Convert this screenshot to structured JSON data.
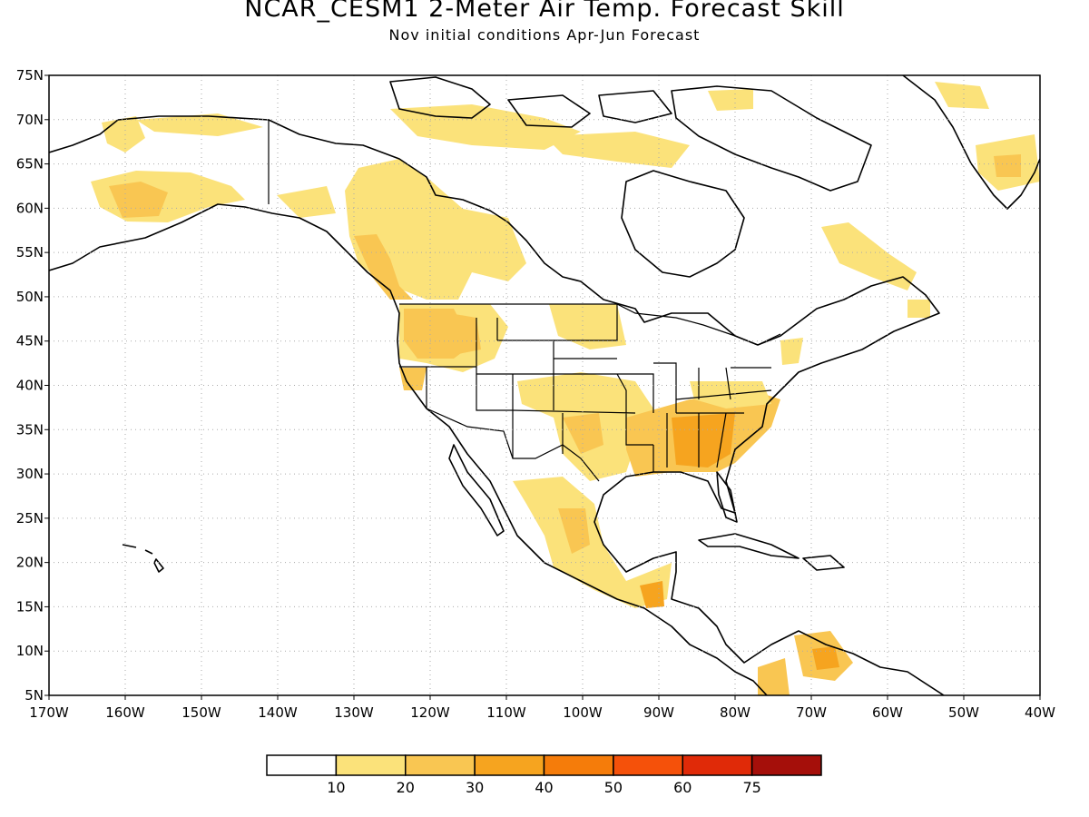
{
  "title": "NCAR_CESM1 2-Meter Air Temp. Forecast Skill",
  "subtitle": "Nov initial conditions  Apr-Jun Forecast",
  "map": {
    "lon_range": [
      -170,
      -40
    ],
    "lat_range": [
      5,
      75
    ],
    "lat_ticks": [
      "5N",
      "10N",
      "15N",
      "20N",
      "25N",
      "30N",
      "35N",
      "40N",
      "45N",
      "50N",
      "55N",
      "60N",
      "65N",
      "70N",
      "75N"
    ],
    "lon_ticks": [
      "170W",
      "160W",
      "150W",
      "140W",
      "130W",
      "120W",
      "110W",
      "100W",
      "90W",
      "80W",
      "70W",
      "60W",
      "50W",
      "40W"
    ],
    "gridlines": true,
    "land_outline_color": "#000000"
  },
  "legend": {
    "bins": [
      {
        "color": "#ffffff"
      },
      {
        "color": "#fbe27a"
      },
      {
        "color": "#f9c652"
      },
      {
        "color": "#f6a41f"
      },
      {
        "color": "#f57c0a"
      },
      {
        "color": "#f5510a"
      },
      {
        "color": "#e02a08"
      },
      {
        "color": "#a50f0a"
      }
    ],
    "labels": [
      "10",
      "20",
      "30",
      "40",
      "50",
      "60",
      "75"
    ]
  },
  "chart_data": {
    "type": "heatmap",
    "title": "NCAR_CESM1 2-Meter Air Temp. Forecast Skill",
    "subtitle": "Nov initial conditions  Apr-Jun Forecast",
    "xlim": [
      -170,
      -40
    ],
    "ylim": [
      5,
      75
    ],
    "scale_levels": [
      10,
      20,
      30,
      40,
      50,
      60,
      75
    ],
    "regions": [
      {
        "name": "",
        "lon": [
          -160,
          -153
        ],
        "lat": [
          62,
          68
        ],
        "level": 10
      },
      {
        "name": "",
        "lon": [
          -163,
          -148
        ],
        "lat": [
          59,
          63
        ],
        "level": 20
      },
      {
        "name": "",
        "lon": [
          -135,
          -110
        ],
        "lat": [
          50,
          63
        ],
        "level": 10
      },
      {
        "name": "",
        "lon": [
          -126,
          -121
        ],
        "lat": [
          50,
          55
        ],
        "level": 20
      },
      {
        "name": "",
        "lon": [
          -124,
          -111
        ],
        "lat": [
          44,
          49
        ],
        "level": 20
      },
      {
        "name": "",
        "lon": [
          -121,
          -118
        ],
        "lat": [
          39,
          42
        ],
        "level": 20
      },
      {
        "name": "",
        "lon": [
          -103,
          -96
        ],
        "lat": [
          32,
          42
        ],
        "level": 10
      },
      {
        "name": "",
        "lon": [
          -93,
          -75
        ],
        "lat": [
          30,
          37
        ],
        "level": 20
      },
      {
        "name": "",
        "lon": [
          -84,
          -79
        ],
        "lat": [
          32,
          35
        ],
        "level": 30
      },
      {
        "name": "",
        "lon": [
          -108,
          -97
        ],
        "lat": [
          18,
          28
        ],
        "level": 10
      },
      {
        "name": "",
        "lon": [
          -92,
          -88
        ],
        "lat": [
          14,
          17
        ],
        "level": 20
      },
      {
        "name": "",
        "lon": [
          -72,
          -66
        ],
        "lat": [
          5,
          11
        ],
        "level": 10
      },
      {
        "name": "",
        "lon": [
          -47,
          -41
        ],
        "lat": [
          62,
          67
        ],
        "level": 10
      },
      {
        "name": "",
        "lon": [
          -68,
          -58
        ],
        "lat": [
          50,
          58
        ],
        "level": 10
      }
    ]
  }
}
